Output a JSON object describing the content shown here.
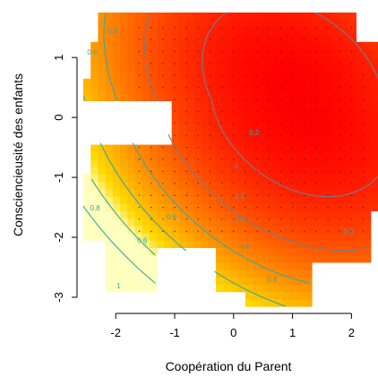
{
  "chart_data": {
    "type": "heatmap",
    "title": "",
    "xlabel": "Coopération du Parent",
    "ylabel": "Consciencieusité des enfants",
    "xlim": [
      -2.55,
      2.45
    ],
    "ylim": [
      -3.15,
      1.75
    ],
    "x_ticks": [
      -2,
      -1,
      0,
      1,
      2
    ],
    "y_ticks": [
      -3,
      -2,
      -1,
      0,
      1
    ],
    "color_scale": {
      "low": "#ffff00",
      "mid": "#ff8000",
      "high": "#ff0000",
      "description": "yellow (high value) to red (low value)"
    },
    "contour_color": "#3aa6a6",
    "grid": false,
    "contour_levels": [
      0,
      0.2,
      0.4,
      0.6,
      0.8,
      1
    ],
    "contour_labels": [
      {
        "text": "0.6",
        "x": -2.4,
        "y": 1.05
      },
      {
        "text": "0.8",
        "x": -2.05,
        "y": 1.4
      },
      {
        "text": "0.2",
        "x": 0.35,
        "y": -0.3
      },
      {
        "text": "0",
        "x": 0.05,
        "y": -0.85
      },
      {
        "text": "0.2",
        "x": 0.1,
        "y": -1.35
      },
      {
        "text": "0.4",
        "x": 0.1,
        "y": -1.75
      },
      {
        "text": "0.6",
        "x": 0.2,
        "y": -2.2
      },
      {
        "text": "0.6",
        "x": 1.95,
        "y": -1.95
      },
      {
        "text": "0.8",
        "x": -2.35,
        "y": -1.55
      },
      {
        "text": "0.6",
        "x": -1.05,
        "y": -1.7
      },
      {
        "text": "0.6",
        "x": -1.55,
        "y": -2.1
      },
      {
        "text": "0.8",
        "x": 0.65,
        "y": -2.75
      },
      {
        "text": "1",
        "x": -1.95,
        "y": -2.85
      }
    ]
  }
}
